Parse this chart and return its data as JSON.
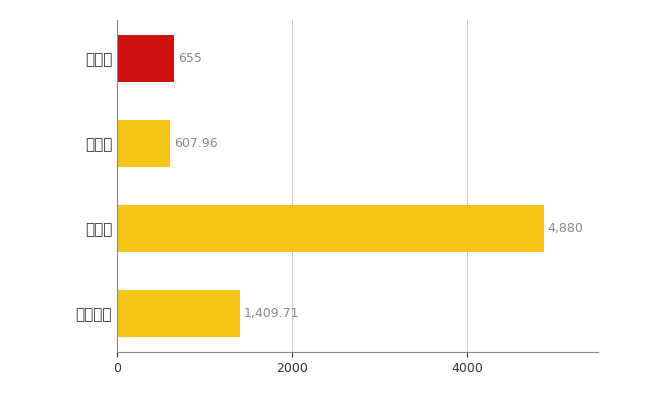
{
  "categories": [
    "阿波市",
    "県平均",
    "県最大",
    "全国平均"
  ],
  "values": [
    655,
    607.96,
    4880,
    1409.71
  ],
  "labels": [
    "655",
    "607.96",
    "4,880",
    "1,409.71"
  ],
  "bar_colors": [
    "#cc1111",
    "#f5c518",
    "#f5c518",
    "#f5c518"
  ],
  "background_color": "#ffffff",
  "xlim": [
    0,
    5500
  ],
  "grid_color": "#cccccc",
  "label_color": "#888888",
  "tick_label_color": "#333333",
  "value_label_fontsize": 9,
  "category_fontsize": 11,
  "bar_height": 0.55
}
